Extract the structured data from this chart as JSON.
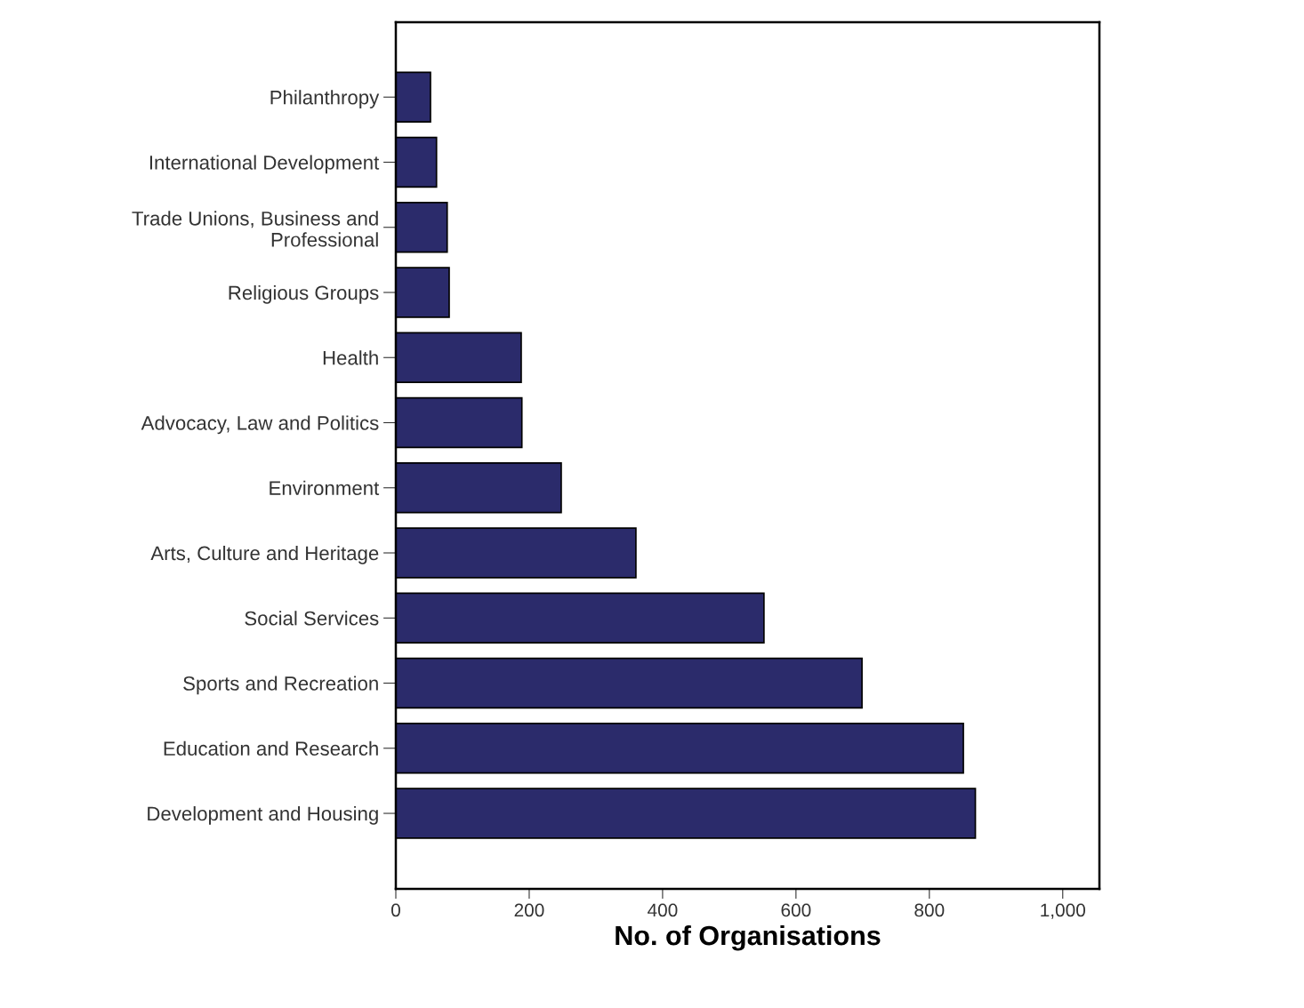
{
  "chart_data": {
    "type": "bar",
    "orientation": "horizontal",
    "xlabel": "No. of Organisations",
    "categories": [
      "Philanthropy",
      "International Development",
      "Trade Unions, Business and\nProfessional",
      "Religious Groups",
      "Health",
      "Advocacy, Law and Politics",
      "Environment",
      "Arts, Culture and Heritage",
      "Social Services",
      "Sports and Recreation",
      "Education and Research",
      "Development and Housing"
    ],
    "values": [
      52,
      61,
      77,
      80,
      188,
      189,
      248,
      360,
      552,
      699,
      851,
      869
    ],
    "color": "#2b2b6b",
    "xlim": [
      0,
      1055
    ],
    "xticks": [
      0,
      200,
      400,
      600,
      800,
      {
        "value": 1000,
        "label": "1,000"
      }
    ],
    "grid": false,
    "legend": false
  }
}
